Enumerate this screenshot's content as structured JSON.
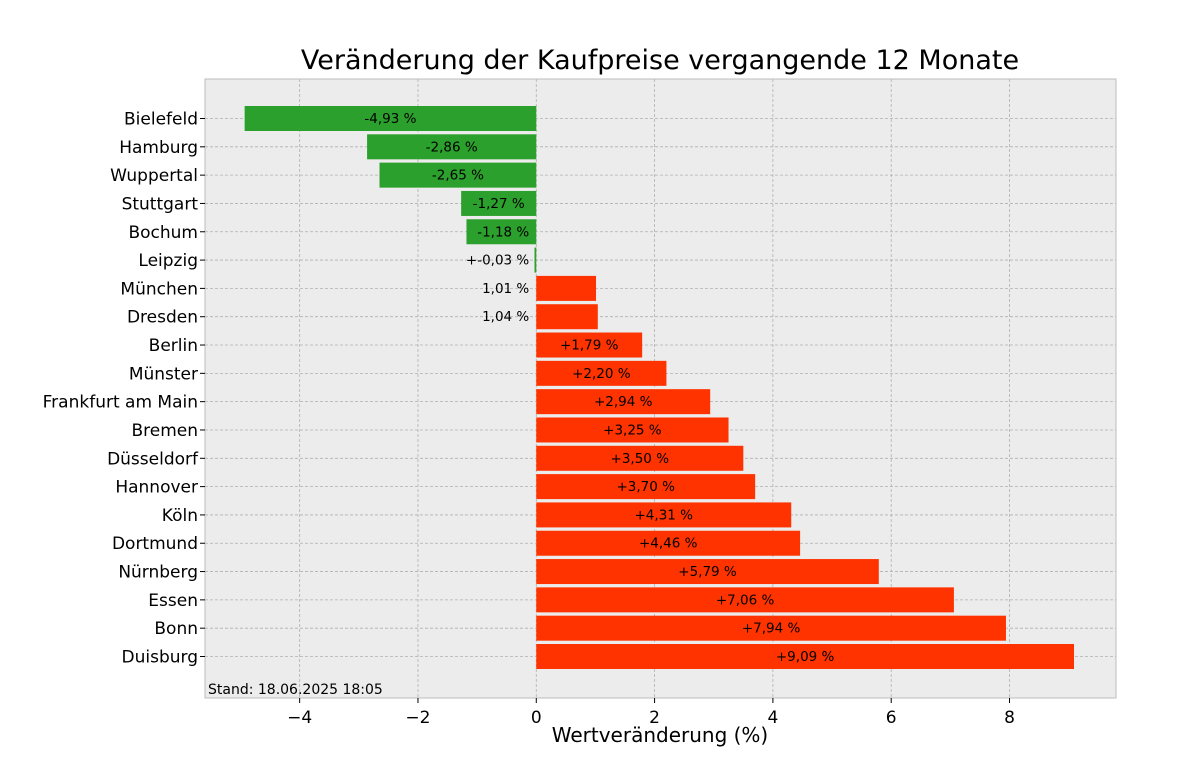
{
  "chart_data": {
    "type": "bar",
    "orientation": "horizontal",
    "title": "Veränderung der Kaufpreise vergangende 12 Monate",
    "xlabel": "Wertveränderung (%)",
    "xlim": [
      -5.6,
      9.8
    ],
    "xticks": [
      -4,
      -2,
      0,
      2,
      4,
      6,
      8
    ],
    "xtick_labels": [
      "−4",
      "−2",
      "0",
      "2",
      "4",
      "6",
      "8"
    ],
    "grid": true,
    "annotation": "Stand: 18.06.2025 18:05",
    "colors": {
      "negative": "#2ca02c",
      "positive": "#ff3300",
      "background": "#ececec",
      "grid": "#b0b0b0"
    },
    "categories": [
      "Bielefeld",
      "Hamburg",
      "Wuppertal",
      "Stuttgart",
      "Bochum",
      "Leipzig",
      "München",
      "Dresden",
      "Berlin",
      "Münster",
      "Frankfurt am Main",
      "Bremen",
      "Düsseldorf",
      "Hannover",
      "Köln",
      "Dortmund",
      "Nürnberg",
      "Essen",
      "Bonn",
      "Duisburg"
    ],
    "values": [
      -4.93,
      -2.86,
      -2.65,
      -1.27,
      -1.18,
      -0.03,
      1.01,
      1.04,
      1.79,
      2.2,
      2.94,
      3.25,
      3.5,
      3.7,
      4.31,
      4.46,
      5.79,
      7.06,
      7.94,
      9.09
    ],
    "labels": [
      "-4,93 %",
      "-2,86 %",
      "-2,65 %",
      "-1,27 %",
      "-1,18 %",
      "+-0,03 %",
      "1,01 %",
      "1,04 %",
      "+1,79 %",
      "+2,20 %",
      "+2,94 %",
      "+3,25 %",
      "+3,50 %",
      "+3,70 %",
      "+4,31 %",
      "+4,46 %",
      "+5,79 %",
      "+7,06 %",
      "+7,94 %",
      "+9,09 %"
    ]
  }
}
